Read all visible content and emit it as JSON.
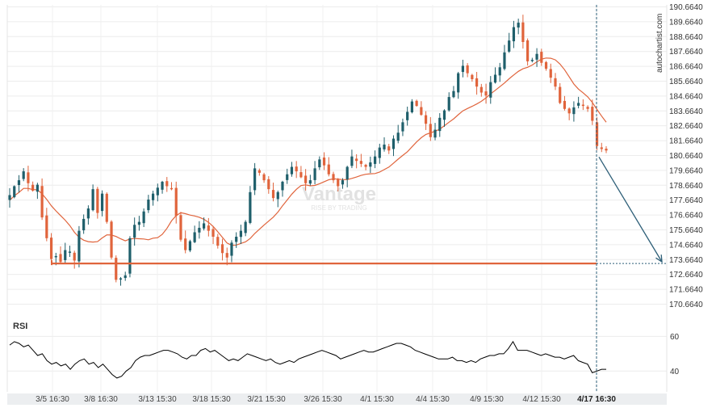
{
  "brand": "autochartist.com",
  "watermark": {
    "main": "Vantage",
    "sub": "RISE BY TRADING"
  },
  "colors": {
    "bull": "#1f5f6b",
    "bear": "#e0643c",
    "ma": "#e0643c",
    "support": "#e0643c",
    "forecast": "#2e5f78",
    "rsi": "#000000",
    "xaxis_bg": "#eceef0"
  },
  "chart_data": [
    {
      "type": "candlestick",
      "title": "",
      "y_ticks": [
        "190.6640",
        "189.6640",
        "188.6640",
        "187.6640",
        "186.6640",
        "185.6640",
        "184.6640",
        "183.6640",
        "182.6640",
        "181.6640",
        "180.6640",
        "179.6640",
        "178.6640",
        "177.6640",
        "176.6640",
        "175.6640",
        "174.6640",
        "173.6640",
        "172.6640",
        "171.6640",
        "170.6640"
      ],
      "x_ticks": [
        "3/5 16:30",
        "3/8 16:30",
        "3/13 15:30",
        "3/18 15:30",
        "3/21 15:30",
        "3/26 15:30",
        "4/1 15:30",
        "4/4 15:30",
        "4/9 15:30",
        "4/12 15:30",
        "4/17 16:30"
      ],
      "x_tick_emphasis": "4/17 16:30",
      "ylim": [
        170.2,
        190.8
      ],
      "grid": true,
      "close_series": [
        178.0,
        178.6,
        179.0,
        179.6,
        178.8,
        178.3,
        178.7,
        176.5,
        175.1,
        173.7,
        173.9,
        173.5,
        174.3,
        174.2,
        173.6,
        175.6,
        176.4,
        177.1,
        178.4,
        176.8,
        178.1,
        176.2,
        173.8,
        172.3,
        172.4,
        172.6,
        175.1,
        176.0,
        176.2,
        176.9,
        177.7,
        178.1,
        178.5,
        178.9,
        178.6,
        178.4,
        176.6,
        175.0,
        174.3,
        174.9,
        175.5,
        175.8,
        176.1,
        175.6,
        175.2,
        174.6,
        174.1,
        173.8,
        174.8,
        175.2,
        175.6,
        176.2,
        178.2,
        179.8,
        179.5,
        179.0,
        178.4,
        177.8,
        178.2,
        178.9,
        179.4,
        179.9,
        179.6,
        179.2,
        178.8,
        179.0,
        179.8,
        180.4,
        180.0,
        179.4,
        179.0,
        178.6,
        179.0,
        179.9,
        180.6,
        180.3,
        180.1,
        179.9,
        180.2,
        180.6,
        181.2,
        181.4,
        181.0,
        181.8,
        182.2,
        182.9,
        183.6,
        184.3,
        184.0,
        183.4,
        182.8,
        181.9,
        182.4,
        183.2,
        183.7,
        184.6,
        185.0,
        186.2,
        186.7,
        186.2,
        185.8,
        185.3,
        184.9,
        184.7,
        185.6,
        186.1,
        186.6,
        187.6,
        188.4,
        189.3,
        189.6,
        188.3,
        187.0,
        187.1,
        187.5,
        186.9,
        186.5,
        185.9,
        185.3,
        184.2,
        183.8,
        183.5,
        183.9,
        184.2,
        184.0,
        183.8,
        183.0,
        181.3,
        181.1,
        181.0
      ]
    },
    {
      "type": "line",
      "title": "RSI",
      "y_ticks": [
        "60",
        "40"
      ],
      "ylim": [
        28,
        70
      ],
      "values": [
        55,
        57,
        56,
        54,
        55,
        52,
        49,
        50,
        46,
        44,
        45,
        43,
        44,
        41,
        44,
        46,
        47,
        44,
        45,
        42,
        44,
        41,
        38,
        36,
        37,
        40,
        42,
        46,
        48,
        49,
        49,
        50,
        51,
        52,
        52,
        51,
        50,
        48,
        47,
        49,
        49,
        52,
        53,
        51,
        52,
        50,
        48,
        46,
        47,
        46,
        48,
        50,
        49,
        48,
        47,
        46,
        47,
        45,
        44,
        45,
        46,
        45,
        47,
        48,
        49,
        50,
        51,
        52,
        51,
        50,
        49,
        47,
        48,
        49,
        50,
        51,
        52,
        51,
        51,
        52,
        53,
        54,
        55,
        56,
        56,
        55,
        54,
        52,
        51,
        50,
        49,
        48,
        47,
        47,
        47,
        48,
        46,
        46,
        45,
        46,
        45,
        47,
        48,
        49,
        49,
        50,
        50,
        53,
        57,
        52,
        52,
        52,
        51,
        50,
        49,
        50,
        49,
        48,
        48,
        47,
        48,
        49,
        46,
        45,
        44,
        39,
        40,
        41,
        41
      ]
    }
  ],
  "support_level": 173.4,
  "forecast_target": 173.4
}
